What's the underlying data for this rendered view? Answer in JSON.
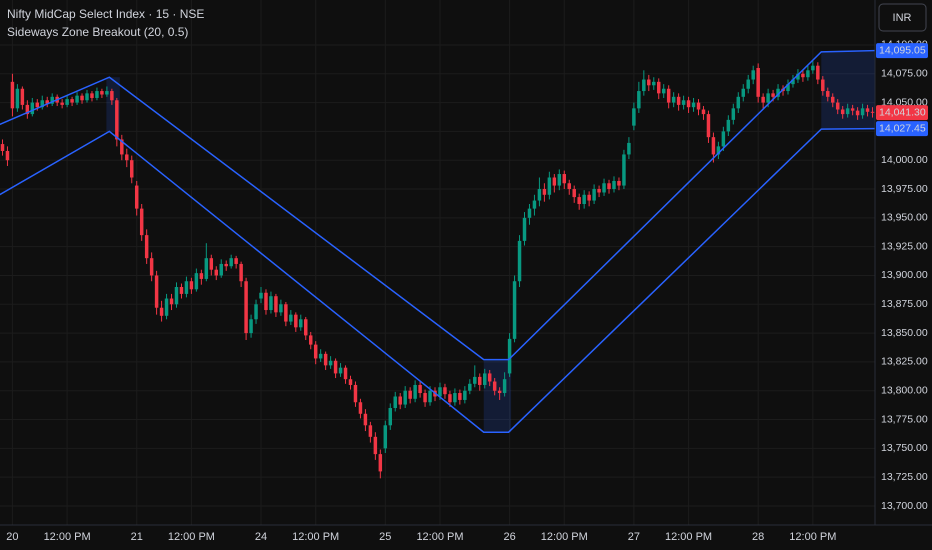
{
  "chart_data": {
    "type": "candlestick",
    "title": "Nifty MidCap Select Index · 15 · NSE",
    "subtitle": "Sideways Zone Breakout (20, 0.5)",
    "currency": "INR",
    "up_color": "#089981",
    "down_color": "#f23645",
    "grid": true,
    "ylim": [
      13683.5,
      14139
    ],
    "yticks": [
      {
        "value": 13700,
        "label": "13,700.00"
      },
      {
        "value": 13725,
        "label": "13,725.00"
      },
      {
        "value": 13750,
        "label": "13,750.00"
      },
      {
        "value": 13775,
        "label": "13,775.00"
      },
      {
        "value": 13800,
        "label": "13,800.00"
      },
      {
        "value": 13825,
        "label": "13,825.00"
      },
      {
        "value": 13850,
        "label": "13,850.00"
      },
      {
        "value": 13875,
        "label": "13,875.00"
      },
      {
        "value": 13900,
        "label": "13,900.00"
      },
      {
        "value": 13925,
        "label": "13,925.00"
      },
      {
        "value": 13950,
        "label": "13,950.00"
      },
      {
        "value": 13975,
        "label": "13,975.00"
      },
      {
        "value": 14000,
        "label": "14,000.00"
      },
      {
        "value": 14025,
        "label": "14,025.00"
      },
      {
        "value": 14050,
        "label": "14,050.00"
      },
      {
        "value": 14075,
        "label": "14,075.00"
      },
      {
        "value": 14100,
        "label": "14,100.00"
      }
    ],
    "categories": [
      null,
      null,
      "20",
      null,
      null,
      null,
      null,
      null,
      null,
      null,
      null,
      null,
      null,
      "12:00 PM",
      null,
      null,
      null,
      null,
      null,
      null,
      null,
      null,
      null,
      null,
      null,
      null,
      null,
      "21",
      null,
      null,
      null,
      null,
      null,
      null,
      null,
      null,
      null,
      null,
      "12:00 PM",
      null,
      null,
      null,
      null,
      null,
      null,
      null,
      null,
      null,
      null,
      null,
      null,
      null,
      "24",
      null,
      null,
      null,
      null,
      null,
      null,
      null,
      null,
      null,
      null,
      "12:00 PM",
      null,
      null,
      null,
      null,
      null,
      null,
      null,
      null,
      null,
      null,
      null,
      null,
      null,
      "25",
      null,
      null,
      null,
      null,
      null,
      null,
      null,
      null,
      null,
      null,
      "12:00 PM",
      null,
      null,
      null,
      null,
      null,
      null,
      null,
      null,
      null,
      null,
      null,
      null,
      null,
      "26",
      null,
      null,
      null,
      null,
      null,
      null,
      null,
      null,
      null,
      null,
      "12:00 PM",
      null,
      null,
      null,
      null,
      null,
      null,
      null,
      null,
      null,
      null,
      null,
      null,
      null,
      "27",
      null,
      null,
      null,
      null,
      null,
      null,
      null,
      null,
      null,
      null,
      "12:00 PM",
      null,
      null,
      null,
      null,
      null,
      null,
      null,
      null,
      null,
      null,
      null,
      null,
      null,
      "28",
      null,
      null,
      null,
      null,
      null,
      null,
      null,
      null,
      null,
      null,
      "12:00 PM",
      null,
      null,
      null,
      null,
      null,
      null,
      null,
      null,
      null,
      null,
      null,
      null
    ],
    "ohlc": [
      [
        14014,
        14018,
        14004,
        14008
      ],
      [
        14008,
        14012,
        13995,
        14000
      ],
      [
        14068,
        14075,
        14038,
        14045
      ],
      [
        14045,
        14066,
        14042,
        14062
      ],
      [
        14062,
        14064,
        14044,
        14048
      ],
      [
        14048,
        14052,
        14036,
        14040
      ],
      [
        14040,
        14054,
        14038,
        14050
      ],
      [
        14050,
        14053,
        14043,
        14046
      ],
      [
        14046,
        14056,
        14044,
        14052
      ],
      [
        14052,
        14055,
        14046,
        14049
      ],
      [
        14049,
        14058,
        14047,
        14055
      ],
      [
        14055,
        14057,
        14047,
        14050
      ],
      [
        14050,
        14053,
        14045,
        14048
      ],
      [
        14048,
        14056,
        14046,
        14053
      ],
      [
        14053,
        14055,
        14047,
        14050
      ],
      [
        14050,
        14059,
        14048,
        14056
      ],
      [
        14056,
        14058,
        14049,
        14052
      ],
      [
        14052,
        14061,
        14050,
        14058
      ],
      [
        14058,
        14060,
        14051,
        14054
      ],
      [
        14054,
        14063,
        14052,
        14060
      ],
      [
        14060,
        14062,
        14054,
        14057
      ],
      [
        14057,
        14064,
        14055,
        14060
      ],
      [
        14060,
        14062,
        14048,
        14052
      ],
      [
        14052,
        14054,
        14012,
        14018
      ],
      [
        14018,
        14022,
        14000,
        14005
      ],
      [
        14005,
        14010,
        13994,
        14000
      ],
      [
        14000,
        14004,
        13980,
        13985
      ],
      [
        13978,
        13982,
        13952,
        13958
      ],
      [
        13958,
        13962,
        13930,
        13935
      ],
      [
        13935,
        13940,
        13910,
        13915
      ],
      [
        13915,
        13920,
        13895,
        13900
      ],
      [
        13900,
        13904,
        13866,
        13872
      ],
      [
        13872,
        13878,
        13860,
        13865
      ],
      [
        13865,
        13884,
        13862,
        13880
      ],
      [
        13880,
        13884,
        13870,
        13875
      ],
      [
        13875,
        13894,
        13872,
        13890
      ],
      [
        13890,
        13893,
        13880,
        13884
      ],
      [
        13884,
        13899,
        13881,
        13895
      ],
      [
        13895,
        13898,
        13884,
        13888
      ],
      [
        13888,
        13906,
        13886,
        13902
      ],
      [
        13902,
        13905,
        13892,
        13897
      ],
      [
        13897,
        13928,
        13895,
        13915
      ],
      [
        13915,
        13918,
        13900,
        13905
      ],
      [
        13905,
        13908,
        13896,
        13900
      ],
      [
        13900,
        13914,
        13898,
        13910
      ],
      [
        13910,
        13913,
        13904,
        13908
      ],
      [
        13908,
        13918,
        13906,
        13915
      ],
      [
        13915,
        13917,
        13906,
        13910
      ],
      [
        13910,
        13912,
        13890,
        13895
      ],
      [
        13895,
        13898,
        13844,
        13850
      ],
      [
        13850,
        13866,
        13846,
        13862
      ],
      [
        13862,
        13879,
        13858,
        13875
      ],
      [
        13880,
        13890,
        13876,
        13885
      ],
      [
        13885,
        13888,
        13866,
        13870
      ],
      [
        13870,
        13886,
        13867,
        13882
      ],
      [
        13882,
        13884,
        13864,
        13868
      ],
      [
        13868,
        13879,
        13865,
        13875
      ],
      [
        13875,
        13877,
        13856,
        13860
      ],
      [
        13860,
        13870,
        13857,
        13866
      ],
      [
        13866,
        13868,
        13851,
        13855
      ],
      [
        13855,
        13866,
        13852,
        13862
      ],
      [
        13862,
        13864,
        13844,
        13848
      ],
      [
        13848,
        13851,
        13836,
        13840
      ],
      [
        13840,
        13843,
        13823,
        13828
      ],
      [
        13828,
        13836,
        13825,
        13832
      ],
      [
        13832,
        13834,
        13818,
        13822
      ],
      [
        13822,
        13830,
        13819,
        13826
      ],
      [
        13826,
        13828,
        13811,
        13815
      ],
      [
        13815,
        13824,
        13812,
        13820
      ],
      [
        13820,
        13822,
        13806,
        13810
      ],
      [
        13810,
        13813,
        13801,
        13805
      ],
      [
        13805,
        13808,
        13786,
        13790
      ],
      [
        13790,
        13793,
        13776,
        13780
      ],
      [
        13780,
        13784,
        13765,
        13770
      ],
      [
        13770,
        13773,
        13755,
        13760
      ],
      [
        13760,
        13764,
        13740,
        13745
      ],
      [
        13745,
        13749,
        13724,
        13730
      ],
      [
        13750,
        13774,
        13746,
        13770
      ],
      [
        13770,
        13789,
        13766,
        13785
      ],
      [
        13785,
        13799,
        13782,
        13795
      ],
      [
        13795,
        13798,
        13784,
        13788
      ],
      [
        13788,
        13804,
        13785,
        13800
      ],
      [
        13800,
        13803,
        13789,
        13793
      ],
      [
        13793,
        13809,
        13790,
        13805
      ],
      [
        13805,
        13808,
        13794,
        13798
      ],
      [
        13798,
        13801,
        13786,
        13790
      ],
      [
        13790,
        13804,
        13787,
        13800
      ],
      [
        13800,
        13803,
        13791,
        13795
      ],
      [
        13795,
        13807,
        13792,
        13803
      ],
      [
        13803,
        13806,
        13793,
        13797
      ],
      [
        13797,
        13800,
        13786,
        13790
      ],
      [
        13790,
        13802,
        13787,
        13798
      ],
      [
        13798,
        13801,
        13788,
        13792
      ],
      [
        13792,
        13804,
        13789,
        13800
      ],
      [
        13800,
        13810,
        13797,
        13806
      ],
      [
        13806,
        13822,
        13803,
        13812
      ],
      [
        13812,
        13815,
        13800,
        13805
      ],
      [
        13805,
        13819,
        13802,
        13815
      ],
      [
        13815,
        13818,
        13804,
        13808
      ],
      [
        13808,
        13811,
        13796,
        13800
      ],
      [
        13800,
        13803,
        13792,
        13798
      ],
      [
        13798,
        13816,
        13795,
        13810
      ],
      [
        13815,
        13850,
        13812,
        13845
      ],
      [
        13845,
        13900,
        13842,
        13895
      ],
      [
        13895,
        13935,
        13890,
        13930
      ],
      [
        13930,
        13955,
        13926,
        13950
      ],
      [
        13950,
        13962,
        13944,
        13958
      ],
      [
        13958,
        13970,
        13952,
        13965
      ],
      [
        13965,
        13985,
        13960,
        13975
      ],
      [
        13975,
        13980,
        13964,
        13970
      ],
      [
        13970,
        13990,
        13966,
        13985
      ],
      [
        13985,
        13988,
        13972,
        13978
      ],
      [
        13978,
        13992,
        13974,
        13988
      ],
      [
        13988,
        13991,
        13975,
        13980
      ],
      [
        13980,
        13983,
        13970,
        13975
      ],
      [
        13975,
        13978,
        13963,
        13968
      ],
      [
        13968,
        13971,
        13957,
        13962
      ],
      [
        13962,
        13974,
        13958,
        13970
      ],
      [
        13970,
        13973,
        13960,
        13965
      ],
      [
        13965,
        13979,
        13962,
        13975
      ],
      [
        13975,
        13978,
        13968,
        13972
      ],
      [
        13972,
        13984,
        13969,
        13980
      ],
      [
        13980,
        13983,
        13971,
        13975
      ],
      [
        13975,
        13986,
        13972,
        13982
      ],
      [
        13982,
        13985,
        13974,
        13978
      ],
      [
        13978,
        14009,
        13975,
        14005
      ],
      [
        14005,
        14020,
        14001,
        14015
      ],
      [
        14030,
        14050,
        14026,
        14045
      ],
      [
        14045,
        14068,
        14041,
        14060
      ],
      [
        14060,
        14078,
        14056,
        14070
      ],
      [
        14070,
        14074,
        14060,
        14065
      ],
      [
        14065,
        14072,
        14061,
        14068
      ],
      [
        14068,
        14071,
        14053,
        14058
      ],
      [
        14058,
        14066,
        14054,
        14062
      ],
      [
        14062,
        14065,
        14045,
        14050
      ],
      [
        14050,
        14059,
        14046,
        14055
      ],
      [
        14055,
        14058,
        14043,
        14048
      ],
      [
        14048,
        14056,
        14044,
        14052
      ],
      [
        14052,
        14055,
        14041,
        14046
      ],
      [
        14046,
        14054,
        14042,
        14050
      ],
      [
        14050,
        14053,
        14039,
        14044
      ],
      [
        14044,
        14047,
        14035,
        14040
      ],
      [
        14040,
        14043,
        14015,
        14020
      ],
      [
        14020,
        14024,
        13998,
        14005
      ],
      [
        14005,
        14016,
        14001,
        14012
      ],
      [
        14012,
        14029,
        14008,
        14025
      ],
      [
        14025,
        14039,
        14021,
        14035
      ],
      [
        14035,
        14049,
        14031,
        14045
      ],
      [
        14045,
        14059,
        14041,
        14055
      ],
      [
        14055,
        14066,
        14051,
        14062
      ],
      [
        14062,
        14074,
        14058,
        14070
      ],
      [
        14070,
        14082,
        14066,
        14078
      ],
      [
        14080,
        14084,
        14050,
        14055
      ],
      [
        14055,
        14058,
        14045,
        14050
      ],
      [
        14050,
        14062,
        14046,
        14058
      ],
      [
        14058,
        14061,
        14051,
        14055
      ],
      [
        14055,
        14066,
        14052,
        14062
      ],
      [
        14062,
        14065,
        14056,
        14060
      ],
      [
        14060,
        14070,
        14057,
        14066
      ],
      [
        14066,
        14074,
        14063,
        14070
      ],
      [
        14070,
        14079,
        14067,
        14075
      ],
      [
        14075,
        14078,
        14068,
        14072
      ],
      [
        14072,
        14082,
        14069,
        14078
      ],
      [
        14078,
        14086,
        14075,
        14082
      ],
      [
        14082,
        14085,
        14066,
        14070
      ],
      [
        14070,
        14073,
        14056,
        14060
      ],
      [
        14060,
        14063,
        14051,
        14055
      ],
      [
        14055,
        14058,
        14046,
        14050
      ],
      [
        14050,
        14053,
        14040,
        14044
      ],
      [
        14044,
        14047,
        14036,
        14040
      ],
      [
        14040,
        14049,
        14037,
        14045
      ],
      [
        14045,
        14048,
        14039,
        14043
      ],
      [
        14043,
        14046,
        14035,
        14039
      ],
      [
        14039,
        14049,
        14036,
        14045
      ],
      [
        14045,
        14048,
        14038,
        14042
      ],
      [
        14042,
        14046,
        14037,
        14041.3
      ]
    ],
    "last_label": "14,041.30",
    "bands": [
      {
        "color": "#2962ff",
        "x": [
          -0.6,
          21.5,
          96.8,
          101.8,
          164.7,
          175
        ],
        "values": [
          14031,
          14072,
          13827,
          13827,
          14094,
          14095.05
        ],
        "last_label": "14,095.05"
      },
      {
        "color": "#2962ff",
        "x": [
          -0.6,
          21.5,
          96.8,
          101.8,
          164.7,
          175
        ],
        "values": [
          13970,
          14025,
          13764,
          13764,
          14027,
          14027.45
        ],
        "last_label": "14,027.45"
      }
    ],
    "zones": [
      {
        "x": [
          20.9,
          23.1
        ],
        "y": [
          14025,
          14072
        ]
      },
      {
        "x": [
          96.8,
          101.8
        ],
        "y": [
          13764,
          13827
        ]
      },
      {
        "x": [
          164.7,
          175
        ],
        "y": [
          14027,
          14094
        ]
      }
    ]
  }
}
